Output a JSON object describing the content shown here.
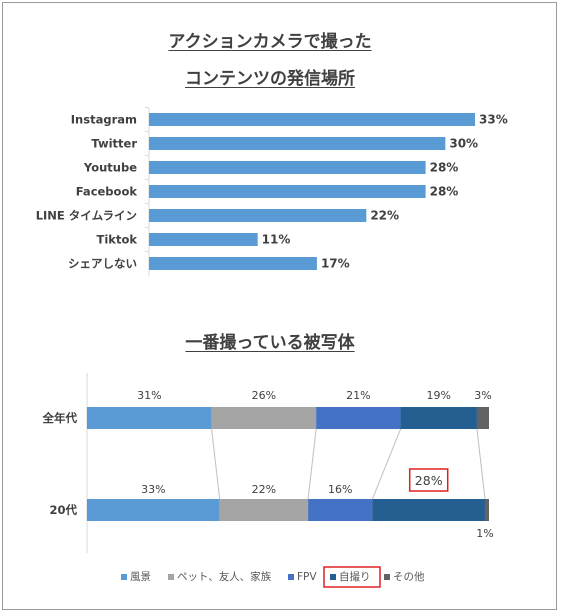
{
  "chart_data": [
    {
      "type": "bar",
      "orientation": "horizontal",
      "title_lines": [
        "アクションカメラで撮った",
        "コンテンツの発信場所"
      ],
      "categories": [
        "Instagram",
        "Twitter",
        "Youtube",
        "Facebook",
        "LINE タイムライン",
        "Tiktok",
        "シェアしない"
      ],
      "values": [
        33,
        30,
        28,
        28,
        22,
        11,
        17
      ],
      "value_labels": [
        "33%",
        "30%",
        "28%",
        "28%",
        "22%",
        "11%",
        "17%"
      ],
      "xlim": [
        0,
        33
      ],
      "color": "#5b9bd5",
      "grid": false
    },
    {
      "type": "bar",
      "orientation": "horizontal",
      "stacked": "100%",
      "title": "一番撮っている被写体",
      "categories": [
        "全年代",
        "20代"
      ],
      "series": [
        {
          "name": "風景",
          "values": [
            31,
            33
          ],
          "labels": [
            "31%",
            "33%"
          ],
          "color": "#5b9bd5"
        },
        {
          "name": "ペット、友人、家族",
          "values": [
            26,
            22
          ],
          "labels": [
            "26%",
            "22%"
          ],
          "color": "#a5a5a5"
        },
        {
          "name": "FPV",
          "values": [
            21,
            16
          ],
          "labels": [
            "21%",
            "16%"
          ],
          "color": "#4472c4"
        },
        {
          "name": "自撮り",
          "values": [
            19,
            28
          ],
          "labels": [
            "19%",
            "28%"
          ],
          "color": "#255e91"
        },
        {
          "name": "その他",
          "values": [
            3,
            1
          ],
          "labels": [
            "3%",
            "1%"
          ],
          "color": "#636363"
        }
      ],
      "highlight": {
        "series": "自撮り",
        "category": "20代",
        "label_box_color": "#e02020"
      },
      "legend": "bottom",
      "grid": false
    }
  ]
}
